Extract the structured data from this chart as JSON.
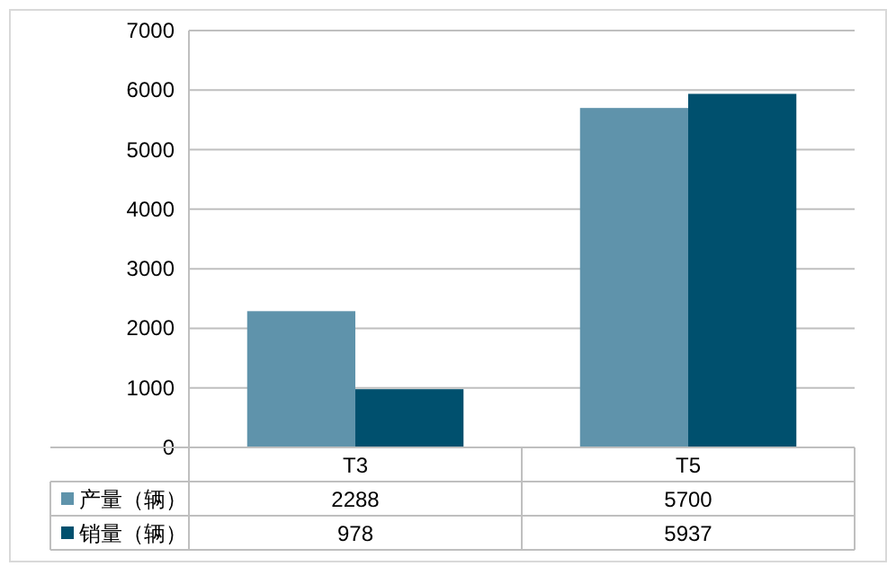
{
  "chart_data": {
    "type": "bar",
    "categories": [
      "T3",
      "T5"
    ],
    "series": [
      {
        "name": "产量（辆）",
        "color": "#5f93ab",
        "values": [
          2288,
          5700
        ]
      },
      {
        "name": "销量（辆）",
        "color": "#00506e",
        "values": [
          978,
          5937
        ]
      }
    ],
    "ylim": [
      0,
      7000
    ],
    "yticks": [
      0,
      1000,
      2000,
      3000,
      4000,
      5000,
      6000,
      7000
    ],
    "grid": "y",
    "legend": "bottom",
    "data_labels": true
  }
}
